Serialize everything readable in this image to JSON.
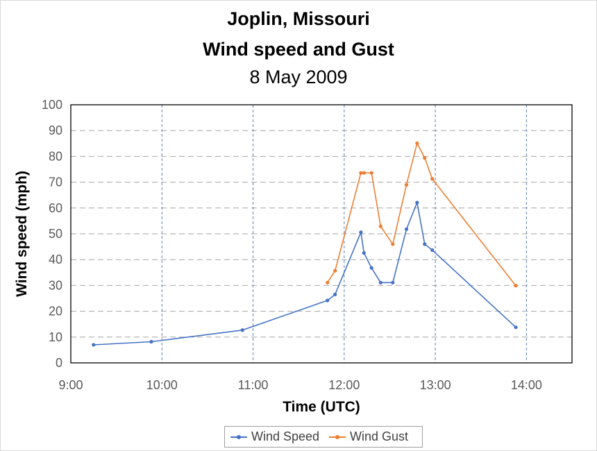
{
  "chart_data": {
    "type": "line",
    "title": "Joplin, Missouri",
    "subtitle": "Wind speed and Gust",
    "subtitle2": "8 May 2009",
    "xlabel": "Time (UTC)",
    "ylabel": "Wind speed (mph)",
    "xlim": [
      "9:00",
      "14:30"
    ],
    "ylim": [
      0,
      100
    ],
    "x_ticks": [
      "9:00",
      "10:00",
      "11:00",
      "12:00",
      "13:00",
      "14:00"
    ],
    "y_ticks": [
      "0",
      "10",
      "20",
      "30",
      "40",
      "50",
      "60",
      "70",
      "80",
      "90",
      "100"
    ],
    "grid": true,
    "legend": "bottom",
    "series": [
      {
        "name": "Wind Speed",
        "color": "#4472c4",
        "points": [
          {
            "x": "9:15",
            "y": 7
          },
          {
            "x": "9:53",
            "y": 8.2
          },
          {
            "x": "10:53",
            "y": 12.7
          },
          {
            "x": "11:49",
            "y": 24.2
          },
          {
            "x": "11:54",
            "y": 26.5
          },
          {
            "x": "12:11",
            "y": 50.6
          },
          {
            "x": "12:13",
            "y": 42.6
          },
          {
            "x": "12:18",
            "y": 36.8
          },
          {
            "x": "12:24",
            "y": 31.1
          },
          {
            "x": "12:32",
            "y": 31.1
          },
          {
            "x": "12:41",
            "y": 51.8
          },
          {
            "x": "12:48",
            "y": 62.1
          },
          {
            "x": "12:53",
            "y": 46
          },
          {
            "x": "12:58",
            "y": 43.7
          },
          {
            "x": "13:53",
            "y": 13.8
          }
        ]
      },
      {
        "name": "Wind Gust",
        "color": "#ed7d31",
        "points": [
          {
            "x": "11:49",
            "y": 31.1
          },
          {
            "x": "11:54",
            "y": 35.7
          },
          {
            "x": "12:11",
            "y": 73.6
          },
          {
            "x": "12:13",
            "y": 73.6
          },
          {
            "x": "12:18",
            "y": 73.6
          },
          {
            "x": "12:24",
            "y": 52.9
          },
          {
            "x": "12:32",
            "y": 46
          },
          {
            "x": "12:41",
            "y": 69
          },
          {
            "x": "12:48",
            "y": 85.1
          },
          {
            "x": "12:53",
            "y": 79.4
          },
          {
            "x": "12:58",
            "y": 71.3
          },
          {
            "x": "13:53",
            "y": 29.9
          }
        ]
      }
    ]
  }
}
